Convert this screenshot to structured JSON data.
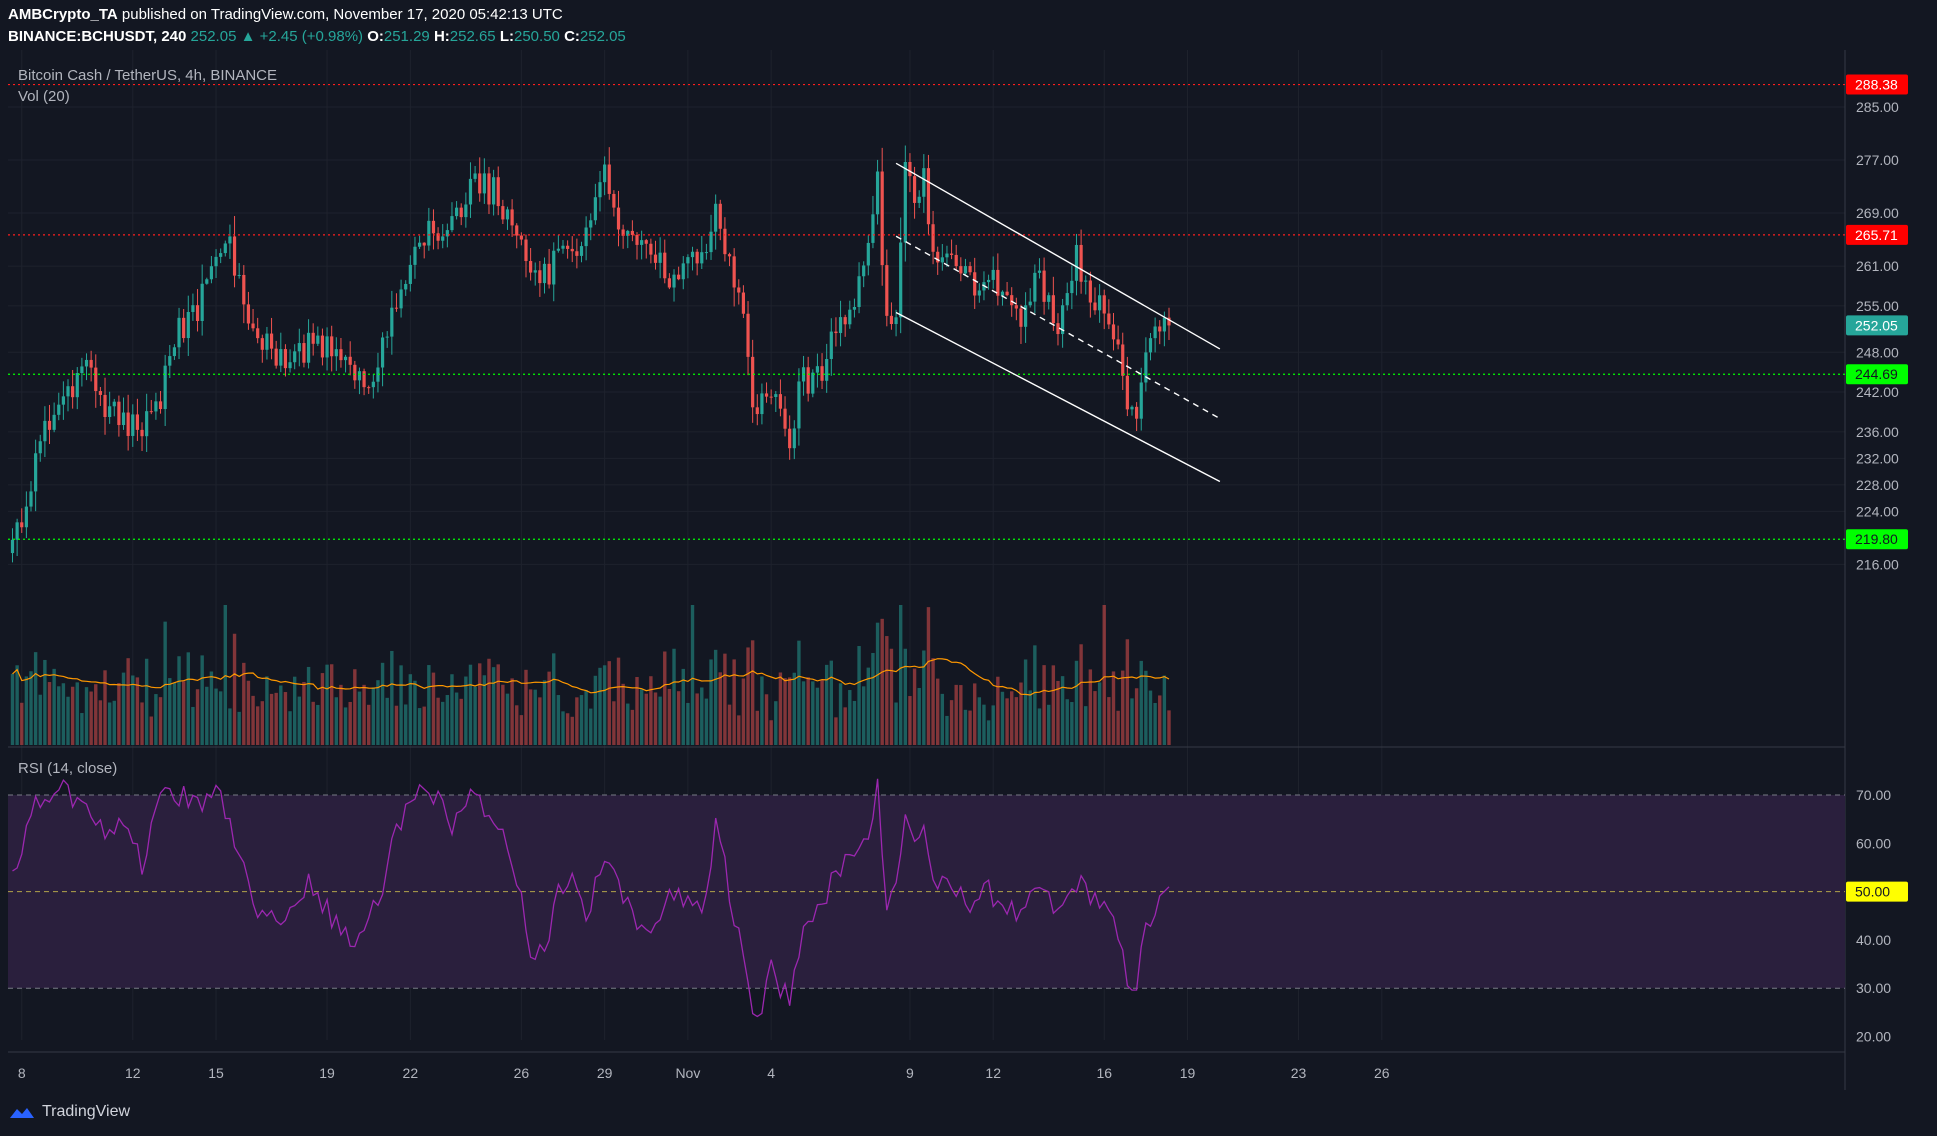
{
  "header": {
    "publisher": "AMBCrypto_TA",
    "published_text": "published on TradingView.com, November 17, 2020 05:42:13 UTC",
    "symbol": "BINANCE:BCHUSDT, 240",
    "last": "252.05",
    "change": "+2.45 (+0.98%)",
    "open_label": "O:",
    "open": "251.29",
    "high_label": "H:",
    "high": "252.65",
    "low_label": "L:",
    "low": "250.50",
    "close_label": "C:",
    "close": "252.05"
  },
  "legend": {
    "instrument": "Bitcoin Cash / TetherUS, 4h, BINANCE",
    "volume": "Vol (20)",
    "rsi": "RSI (14, close)"
  },
  "brand": {
    "name": "TradingView"
  },
  "colors": {
    "background": "#131722",
    "bull": "#26a69a",
    "bear": "#ef5350",
    "rsi_line": "#9c27b0",
    "rsi_band": "#2a1f3d",
    "volume_ma": "#ff9800",
    "resistance": "#ff1e1e",
    "support": "#00ff00",
    "channel": "#ffffff"
  },
  "chart_data": {
    "type": "candlestick",
    "price_axis_ticks": [
      "285.00",
      "277.00",
      "269.00",
      "261.00",
      "255.00",
      "248.00",
      "242.00",
      "236.00",
      "232.00",
      "228.00",
      "224.00",
      "216.00"
    ],
    "price_levels": [
      {
        "value": 288.38,
        "label": "288.38",
        "style": "dotted",
        "color": "#ff1e1e"
      },
      {
        "value": 265.71,
        "label": "265.71",
        "style": "dotted",
        "color": "#ff1e1e"
      },
      {
        "value": 244.69,
        "label": "244.69",
        "style": "dotted",
        "color": "#00ff00"
      },
      {
        "value": 219.8,
        "label": "219.80",
        "style": "dotted",
        "color": "#00ff00"
      }
    ],
    "last_price": {
      "value": 252.05,
      "label": "252.05"
    },
    "x_axis_labels": [
      {
        "label": "8",
        "index": 2
      },
      {
        "label": "12",
        "index": 26
      },
      {
        "label": "15",
        "index": 44
      },
      {
        "label": "19",
        "index": 68
      },
      {
        "label": "22",
        "index": 86
      },
      {
        "label": "26",
        "index": 110
      },
      {
        "label": "29",
        "index": 128
      },
      {
        "label": "Nov",
        "index": 146
      },
      {
        "label": "4",
        "index": 164
      },
      {
        "label": "9",
        "index": 194
      },
      {
        "label": "12",
        "index": 212
      },
      {
        "label": "16",
        "index": 236
      },
      {
        "label": "19",
        "index": 254
      },
      {
        "label": "23",
        "index": 278
      },
      {
        "label": "26",
        "index": 296
      }
    ],
    "channel": {
      "upper": [
        [
          191,
          276.5
        ],
        [
          261,
          248.5
        ]
      ],
      "middle": [
        [
          191,
          265.5
        ],
        [
          261,
          238.0
        ]
      ],
      "lower": [
        [
          191,
          254.0
        ],
        [
          261,
          228.5
        ]
      ]
    },
    "price_keypoints": [
      [
        0,
        220.0
      ],
      [
        3,
        224.5
      ],
      [
        6,
        236.0
      ],
      [
        10,
        238.5
      ],
      [
        14,
        242.5
      ],
      [
        16,
        244.5
      ],
      [
        20,
        240.0
      ],
      [
        24,
        238.5
      ],
      [
        28,
        236.0
      ],
      [
        32,
        241.5
      ],
      [
        36,
        252.0
      ],
      [
        40,
        254.0
      ],
      [
        44,
        262.5
      ],
      [
        47,
        264.0
      ],
      [
        50,
        255.0
      ],
      [
        54,
        250.0
      ],
      [
        58,
        246.0
      ],
      [
        62,
        249.0
      ],
      [
        66,
        248.5
      ],
      [
        70,
        250.0
      ],
      [
        74,
        246.0
      ],
      [
        77,
        241.0
      ],
      [
        80,
        250.0
      ],
      [
        84,
        256.0
      ],
      [
        86,
        262.0
      ],
      [
        88,
        266.0
      ],
      [
        92,
        267.0
      ],
      [
        96,
        268.0
      ],
      [
        100,
        274.0
      ],
      [
        104,
        272.0
      ],
      [
        108,
        268.0
      ],
      [
        110,
        265.0
      ],
      [
        112,
        261.0
      ],
      [
        114,
        258.0
      ],
      [
        118,
        262.0
      ],
      [
        122,
        264.5
      ],
      [
        126,
        270.0
      ],
      [
        128,
        274.0
      ],
      [
        130,
        269.0
      ],
      [
        134,
        266.0
      ],
      [
        138,
        262.0
      ],
      [
        142,
        260.0
      ],
      [
        146,
        263.0
      ],
      [
        150,
        262.5
      ],
      [
        152,
        269.0
      ],
      [
        154,
        264.0
      ],
      [
        156,
        260.0
      ],
      [
        158,
        255.0
      ],
      [
        160,
        240.0
      ],
      [
        162,
        242.0
      ],
      [
        164,
        241.0
      ],
      [
        166,
        238.0
      ],
      [
        168,
        236.0
      ],
      [
        171,
        244.0
      ],
      [
        175,
        245.0
      ],
      [
        179,
        253.0
      ],
      [
        183,
        257.0
      ],
      [
        185,
        265.0
      ],
      [
        187,
        273.0
      ],
      [
        189,
        252.0
      ],
      [
        191,
        255.0
      ],
      [
        193,
        275.0
      ],
      [
        195,
        271.0
      ],
      [
        197,
        274.0
      ],
      [
        199,
        264.0
      ],
      [
        203,
        262.0
      ],
      [
        207,
        258.0
      ],
      [
        211,
        259.0
      ],
      [
        215,
        256.0
      ],
      [
        218,
        253.0
      ],
      [
        222,
        259.0
      ],
      [
        226,
        253.0
      ],
      [
        230,
        262.0
      ],
      [
        234,
        256.0
      ],
      [
        237,
        252.0
      ],
      [
        239,
        247.0
      ],
      [
        241,
        241.0
      ],
      [
        243,
        239.0
      ],
      [
        245,
        248.0
      ],
      [
        247,
        250.0
      ],
      [
        250,
        252.05
      ]
    ],
    "rsi": {
      "levels": [
        70,
        50,
        30
      ],
      "axis_ticks": [
        "70.00",
        "60.00",
        "50.00",
        "40.00",
        "30.00",
        "20.00"
      ],
      "current": {
        "value": 50.0,
        "label": "50.00"
      },
      "keypoints": [
        [
          0,
          52.0
        ],
        [
          4,
          68.0
        ],
        [
          8,
          70.0
        ],
        [
          12,
          71.0
        ],
        [
          16,
          67.0
        ],
        [
          20,
          62.0
        ],
        [
          24,
          63.0
        ],
        [
          28,
          56.0
        ],
        [
          32,
          69.0
        ],
        [
          36,
          70.0
        ],
        [
          40,
          68.0
        ],
        [
          44,
          72.0
        ],
        [
          48,
          60.0
        ],
        [
          52,
          48.0
        ],
        [
          56,
          44.0
        ],
        [
          60,
          47.0
        ],
        [
          64,
          52.0
        ],
        [
          68,
          46.0
        ],
        [
          72,
          42.0
        ],
        [
          75,
          39.0
        ],
        [
          79,
          48.0
        ],
        [
          83,
          62.0
        ],
        [
          87,
          70.0
        ],
        [
          91,
          70.0
        ],
        [
          95,
          64.0
        ],
        [
          99,
          70.0
        ],
        [
          103,
          67.0
        ],
        [
          107,
          60.0
        ],
        [
          110,
          48.0
        ],
        [
          112,
          38.0
        ],
        [
          115,
          37.0
        ],
        [
          118,
          50.0
        ],
        [
          122,
          52.0
        ],
        [
          124,
          44.0
        ],
        [
          128,
          58.0
        ],
        [
          130,
          55.0
        ],
        [
          134,
          45.0
        ],
        [
          138,
          43.0
        ],
        [
          142,
          50.0
        ],
        [
          146,
          47.0
        ],
        [
          150,
          48.0
        ],
        [
          152,
          65.0
        ],
        [
          154,
          55.0
        ],
        [
          156,
          45.0
        ],
        [
          158,
          38.0
        ],
        [
          160,
          23.0
        ],
        [
          162,
          27.0
        ],
        [
          164,
          34.0
        ],
        [
          166,
          30.0
        ],
        [
          168,
          28.0
        ],
        [
          171,
          43.0
        ],
        [
          175,
          48.0
        ],
        [
          179,
          55.0
        ],
        [
          183,
          58.0
        ],
        [
          185,
          62.0
        ],
        [
          187,
          72.0
        ],
        [
          189,
          48.0
        ],
        [
          191,
          52.0
        ],
        [
          193,
          65.0
        ],
        [
          195,
          60.0
        ],
        [
          197,
          64.0
        ],
        [
          199,
          52.0
        ],
        [
          203,
          50.0
        ],
        [
          207,
          48.0
        ],
        [
          211,
          50.0
        ],
        [
          215,
          47.0
        ],
        [
          218,
          44.0
        ],
        [
          222,
          51.0
        ],
        [
          226,
          45.0
        ],
        [
          230,
          52.0
        ],
        [
          234,
          49.0
        ],
        [
          237,
          45.0
        ],
        [
          239,
          40.0
        ],
        [
          241,
          32.0
        ],
        [
          243,
          31.0
        ],
        [
          245,
          42.0
        ],
        [
          247,
          46.0
        ],
        [
          250,
          50.0
        ]
      ]
    },
    "bars_count": 251
  }
}
